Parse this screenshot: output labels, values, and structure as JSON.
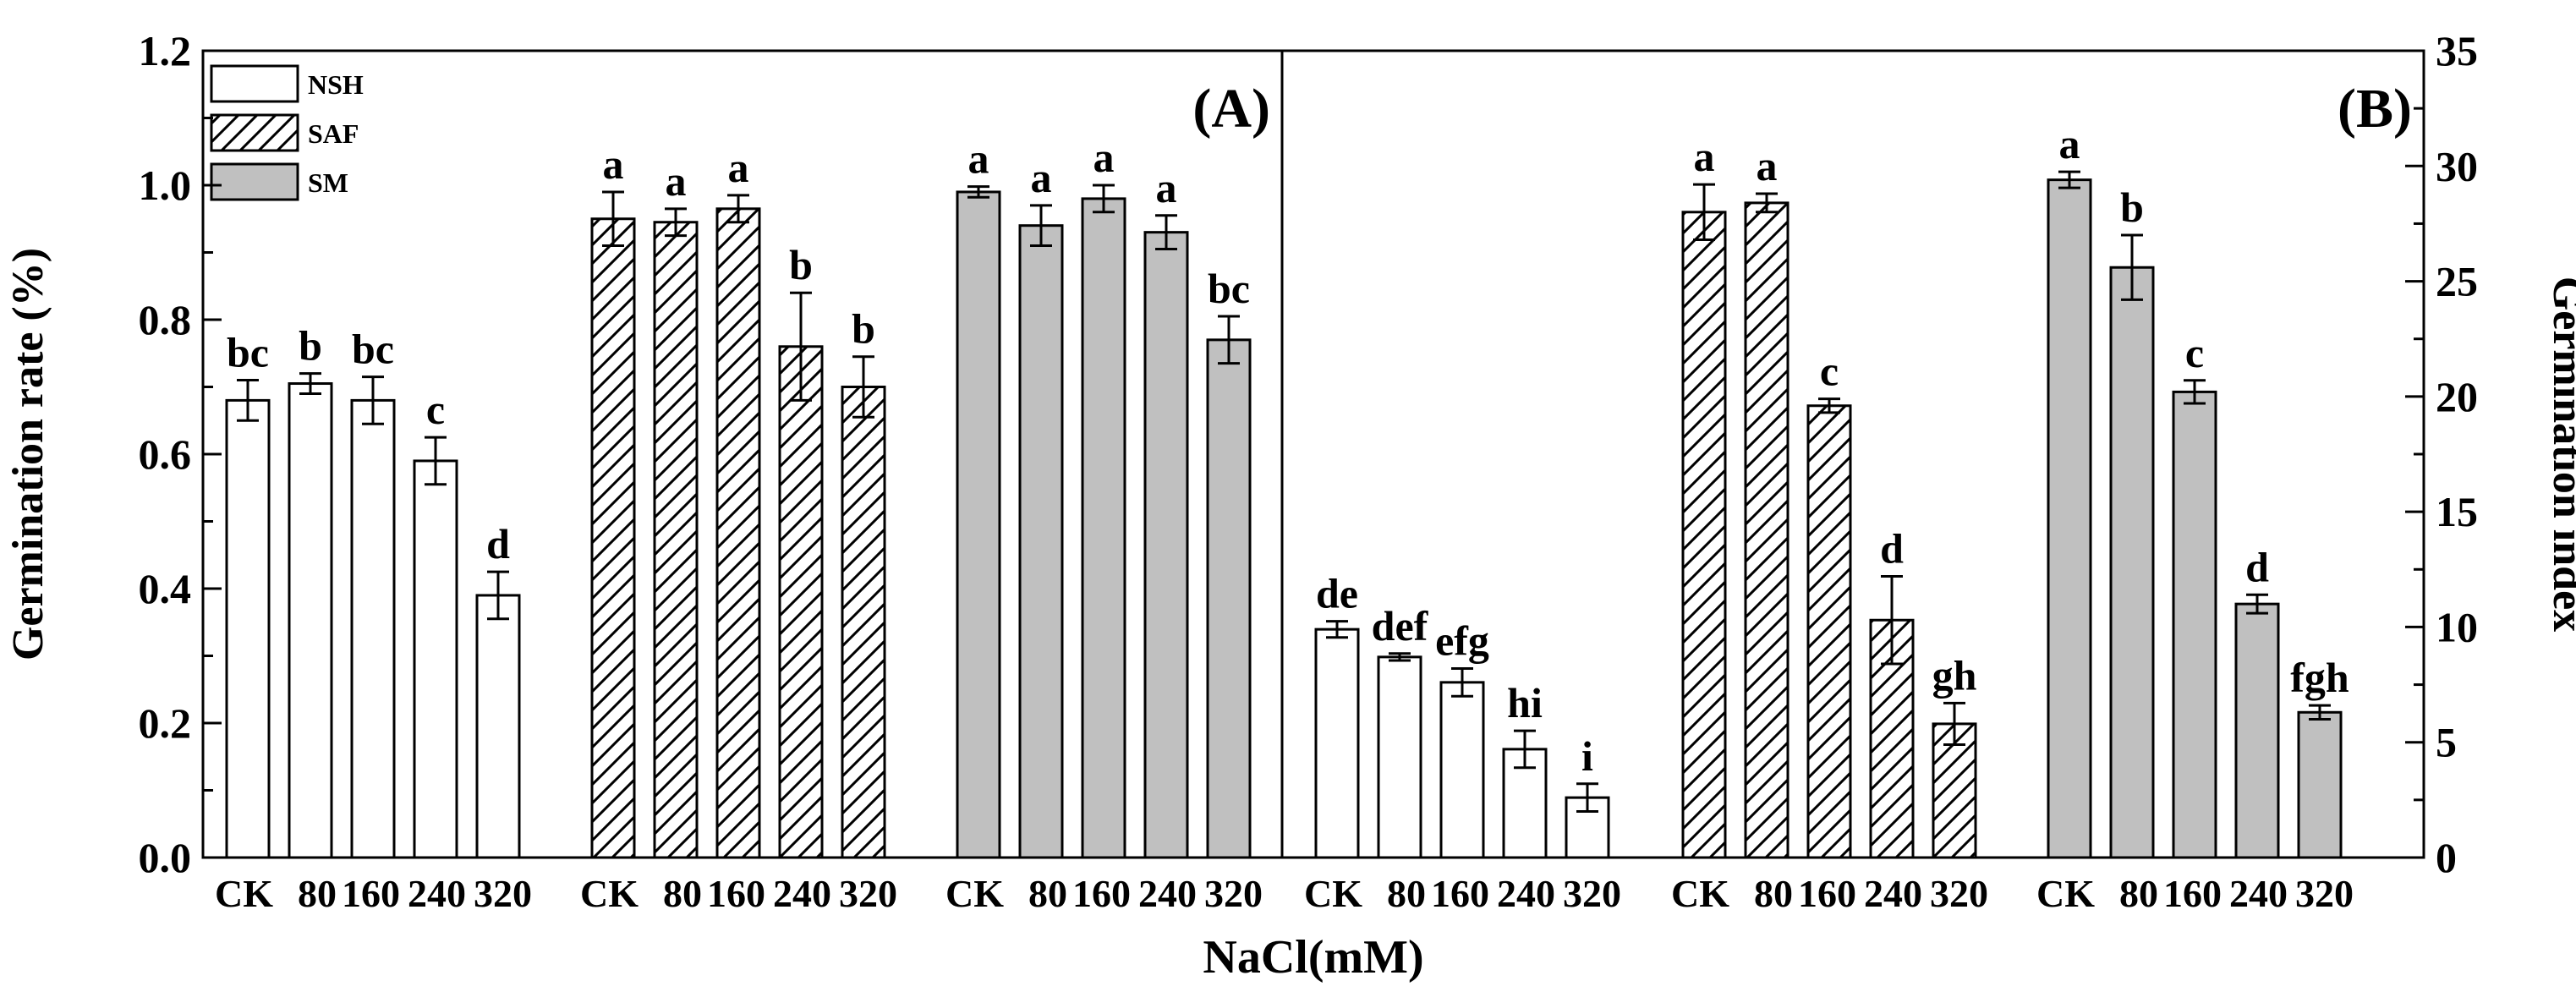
{
  "chart_data": {
    "type": "bar",
    "xlabel": "NaCl(mM)",
    "categories": [
      "CK",
      "80",
      "160",
      "240",
      "320"
    ],
    "legend": [
      {
        "name": "NSH",
        "style": "open"
      },
      {
        "name": "SAF",
        "style": "hatched"
      },
      {
        "name": "SM",
        "style": "gray",
        "color": "#c0c0c0"
      }
    ],
    "panels": [
      {
        "label": "(A)",
        "ylabel": "Germination rate (%)",
        "ylim": [
          0.0,
          1.2
        ],
        "yticks": [
          "0.0",
          "0.2",
          "0.4",
          "0.6",
          "0.8",
          "1.0",
          "1.2"
        ],
        "series": [
          {
            "name": "NSH",
            "values": [
              0.68,
              0.705,
              0.68,
              0.59,
              0.39
            ],
            "errors": [
              0.03,
              0.015,
              0.035,
              0.035,
              0.035
            ],
            "letters": [
              "bc",
              "b",
              "bc",
              "c",
              "d"
            ]
          },
          {
            "name": "SAF",
            "values": [
              0.95,
              0.945,
              0.965,
              0.76,
              0.7
            ],
            "errors": [
              0.04,
              0.02,
              0.02,
              0.08,
              0.045
            ],
            "letters": [
              "a",
              "a",
              "a",
              "b",
              "b"
            ]
          },
          {
            "name": "SM",
            "values": [
              0.99,
              0.94,
              0.98,
              0.93,
              0.77
            ],
            "errors": [
              0.008,
              0.03,
              0.02,
              0.025,
              0.035
            ],
            "letters": [
              "a",
              "a",
              "a",
              "a",
              "bc"
            ]
          }
        ]
      },
      {
        "label": "(B)",
        "ylabel": "Germination index",
        "ylim": [
          0,
          35
        ],
        "yticks": [
          "0",
          "5",
          "10",
          "15",
          "20",
          "25",
          "30",
          "35"
        ],
        "series": [
          {
            "name": "NSH",
            "values": [
              9.9,
              8.7,
              7.6,
              4.7,
              2.6
            ],
            "errors": [
              0.35,
              0.15,
              0.6,
              0.8,
              0.6
            ],
            "letters": [
              "de",
              "def",
              "efg",
              "hi",
              "i"
            ]
          },
          {
            "name": "SAF",
            "values": [
              28.0,
              28.4,
              19.6,
              10.3,
              5.8
            ],
            "errors": [
              1.2,
              0.4,
              0.3,
              1.9,
              0.9
            ],
            "letters": [
              "a",
              "a",
              "c",
              "d",
              "gh"
            ]
          },
          {
            "name": "SM",
            "values": [
              29.4,
              25.6,
              20.2,
              11.0,
              6.3
            ],
            "errors": [
              0.35,
              1.4,
              0.5,
              0.4,
              0.3
            ],
            "letters": [
              "a",
              "b",
              "c",
              "d",
              "fgh"
            ]
          }
        ]
      }
    ]
  }
}
